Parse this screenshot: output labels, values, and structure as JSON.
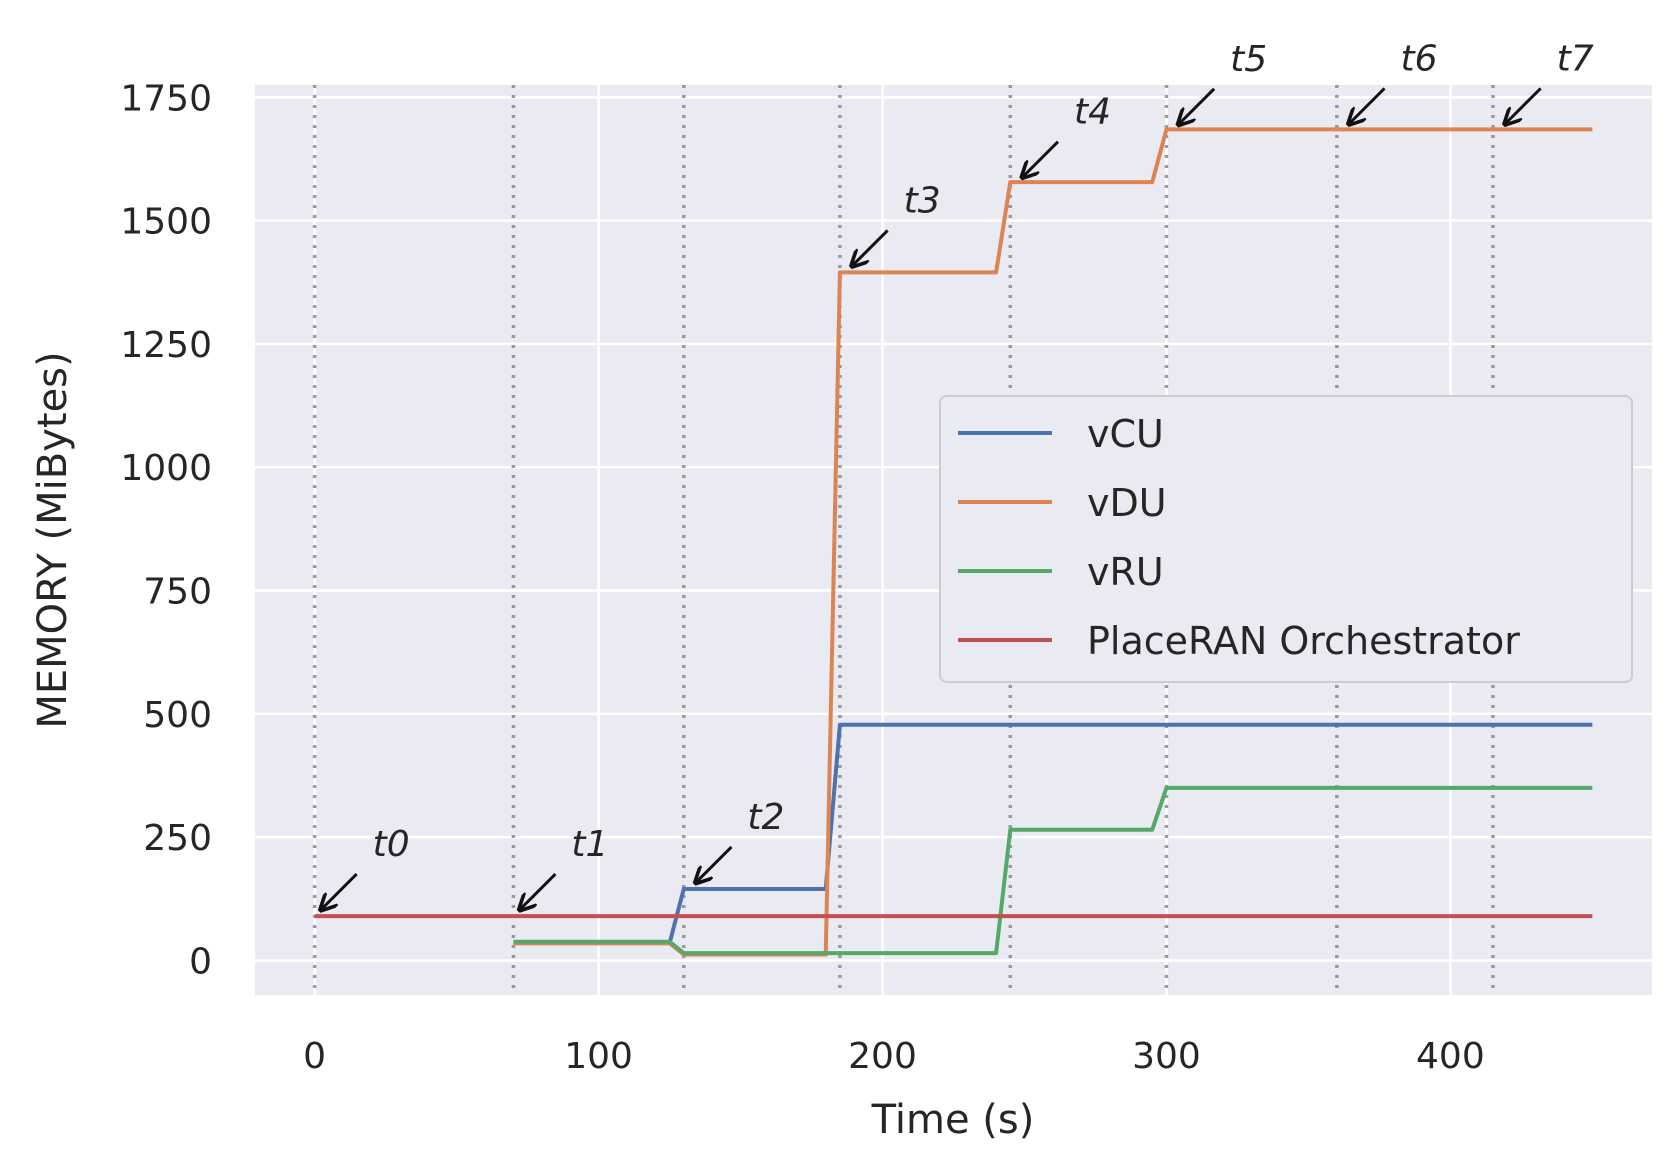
{
  "chart_data": {
    "type": "line",
    "title": "",
    "xlabel": "Time (s)",
    "ylabel": "MEMORY (MiBytes)",
    "xlim": [
      -21,
      471
    ],
    "ylim": [
      -70,
      1775
    ],
    "x_ticks": [
      0,
      100,
      200,
      300,
      400
    ],
    "y_ticks": [
      0,
      250,
      500,
      750,
      1000,
      1250,
      1500,
      1750
    ],
    "x_tick_labels": [
      "0",
      "100",
      "200",
      "300",
      "400"
    ],
    "y_tick_labels": [
      "0",
      "250",
      "500",
      "750",
      "1000",
      "1250",
      "1500",
      "1750"
    ],
    "grid": true,
    "legend_position": "center-right",
    "event_lines": [
      0,
      70,
      130,
      185,
      245,
      300,
      360,
      415
    ],
    "annotations": [
      {
        "label": "t0",
        "x": 0,
        "y": 90
      },
      {
        "label": "t1",
        "x": 70,
        "y": 90
      },
      {
        "label": "t2",
        "x": 132,
        "y": 145
      },
      {
        "label": "t3",
        "x": 187,
        "y": 1395
      },
      {
        "label": "t4",
        "x": 247,
        "y": 1575
      },
      {
        "label": "t5",
        "x": 302,
        "y": 1682
      },
      {
        "label": "t6",
        "x": 362,
        "y": 1683
      },
      {
        "label": "t7",
        "x": 417,
        "y": 1683
      }
    ],
    "series": [
      {
        "name": "vCU",
        "color": "#4c72b0",
        "x": [
          70,
          125,
          130,
          180,
          185,
          450
        ],
        "y": [
          35,
          35,
          145,
          145,
          478,
          478
        ]
      },
      {
        "name": "vDU",
        "color": "#dd8452",
        "x": [
          70,
          125,
          130,
          180,
          185,
          240,
          245,
          295,
          300,
          450
        ],
        "y": [
          35,
          35,
          12,
          12,
          1395,
          1395,
          1578,
          1578,
          1685,
          1685
        ]
      },
      {
        "name": "vRU",
        "color": "#55a868",
        "x": [
          70,
          125,
          130,
          240,
          245,
          295,
          300,
          450
        ],
        "y": [
          38,
          38,
          15,
          15,
          265,
          265,
          350,
          350
        ]
      },
      {
        "name": "PlaceRAN Orchestrator",
        "color": "#c44e52",
        "x": [
          0,
          450
        ],
        "y": [
          90,
          90
        ]
      }
    ]
  }
}
